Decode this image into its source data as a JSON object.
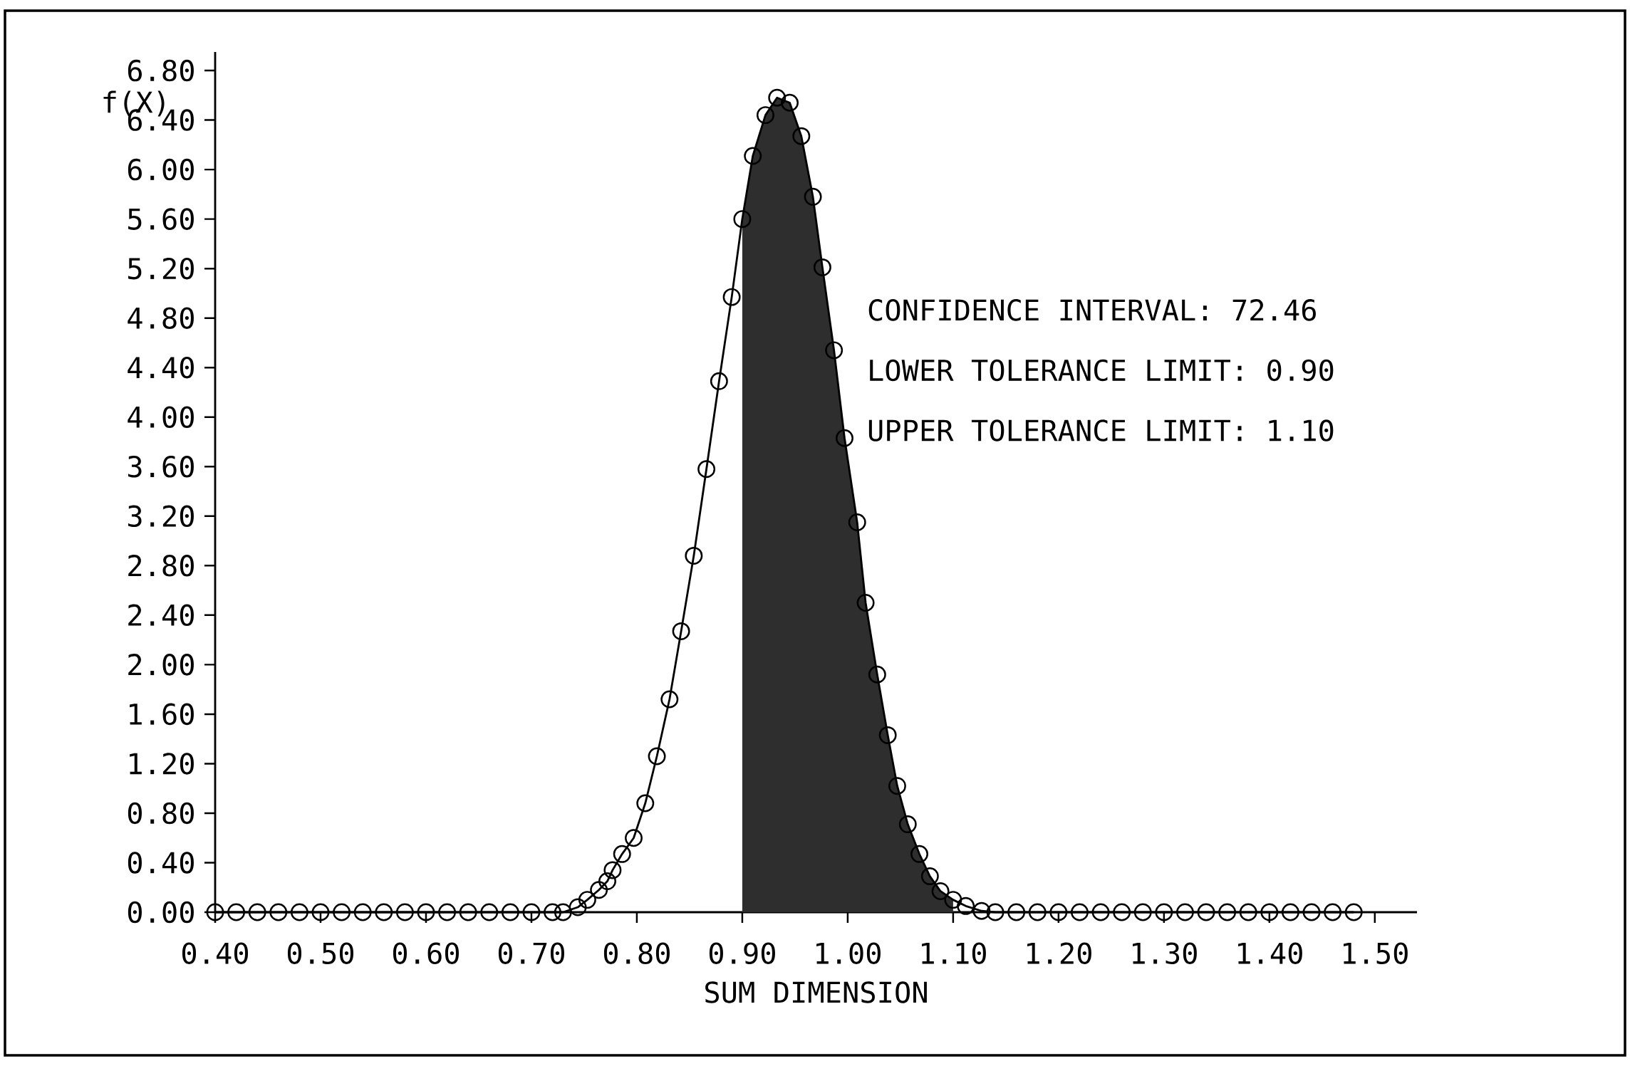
{
  "chart_data": {
    "type": "line",
    "xlabel": "SUM DIMENSION",
    "ylabel": "f(X)",
    "annotations": [
      "CONFIDENCE INTERVAL:  72.46",
      "LOWER TOLERANCE LIMIT:   0.90",
      "UPPER TOLERANCE LIMIT:   1.10"
    ],
    "series": [
      {
        "type": "area",
        "color": "#2e2e2e",
        "marker": "none",
        "x": [
          0.9,
          0.91,
          0.922,
          0.933,
          0.945,
          0.956,
          0.967,
          0.976,
          0.987,
          0.997,
          1.009,
          1.017,
          1.028,
          1.038,
          1.047,
          1.057,
          1.068,
          1.078,
          1.088,
          1.1
        ],
        "values": [
          5.6,
          6.11,
          6.44,
          6.58,
          6.54,
          6.27,
          5.78,
          5.21,
          4.54,
          3.83,
          3.15,
          2.5,
          1.92,
          1.43,
          1.02,
          0.71,
          0.47,
          0.29,
          0.17,
          0.1
        ]
      },
      {
        "color": "#000000",
        "x": [
          0.4,
          0.42,
          0.44,
          0.46,
          0.48,
          0.5,
          0.52,
          0.54,
          0.56,
          0.58,
          0.6,
          0.62,
          0.64,
          0.66,
          0.68,
          0.7,
          0.72,
          0.73,
          0.744,
          0.753,
          0.764,
          0.772,
          0.777,
          0.786,
          0.797,
          0.808,
          0.819,
          0.831,
          0.842,
          0.854,
          0.866,
          0.878,
          0.89,
          0.9,
          0.91,
          0.922,
          0.933,
          0.945,
          0.956,
          0.967,
          0.976,
          0.987,
          0.997,
          1.009,
          1.017,
          1.028,
          1.038,
          1.047,
          1.057,
          1.068,
          1.078,
          1.088,
          1.1,
          1.112,
          1.127,
          1.14,
          1.16,
          1.18,
          1.2,
          1.22,
          1.24,
          1.26,
          1.28,
          1.3,
          1.32,
          1.34,
          1.36,
          1.38,
          1.4,
          1.42,
          1.44,
          1.46,
          1.48
        ],
        "values": [
          0,
          0,
          0,
          0,
          0,
          0,
          0,
          0,
          0,
          0,
          0,
          0,
          0,
          0,
          0,
          0,
          0,
          0,
          0.04,
          0.1,
          0.18,
          0.25,
          0.34,
          0.47,
          0.6,
          0.88,
          1.26,
          1.72,
          2.27,
          2.88,
          3.58,
          4.29,
          4.97,
          5.6,
          6.11,
          6.44,
          6.58,
          6.54,
          6.27,
          5.78,
          5.21,
          4.54,
          3.83,
          3.15,
          2.5,
          1.92,
          1.43,
          1.02,
          0.71,
          0.47,
          0.29,
          0.17,
          0.1,
          0.05,
          0.01,
          0,
          0,
          0,
          0,
          0,
          0,
          0,
          0,
          0,
          0,
          0,
          0,
          0,
          0,
          0,
          0,
          0,
          0
        ]
      }
    ],
    "xlim": [
      0.4,
      1.54
    ],
    "ylim": [
      0,
      6.95
    ],
    "xticks": [
      {
        "value": 0.4,
        "label": "0.40"
      },
      {
        "value": 0.5,
        "label": "0.50"
      },
      {
        "value": 0.6,
        "label": "0.60"
      },
      {
        "value": 0.7,
        "label": "0.70"
      },
      {
        "value": 0.8,
        "label": "0.80"
      },
      {
        "value": 0.9,
        "label": "0.90"
      },
      {
        "value": 1.0,
        "label": "1.00"
      },
      {
        "value": 1.1,
        "label": "1.10"
      },
      {
        "value": 1.2,
        "label": "1.20"
      },
      {
        "value": 1.3,
        "label": "1.30"
      },
      {
        "value": 1.4,
        "label": "1.40"
      },
      {
        "value": 1.5,
        "label": "1.50"
      }
    ],
    "yticks": [
      {
        "value": 0,
        "label": "0.00"
      },
      {
        "value": 0.4,
        "label": "0.40"
      },
      {
        "value": 0.8,
        "label": "0.80"
      },
      {
        "value": 1.2,
        "label": "1.20"
      },
      {
        "value": 1.6,
        "label": "1.60"
      },
      {
        "value": 2.0,
        "label": "2.00"
      },
      {
        "value": 2.4,
        "label": "2.40"
      },
      {
        "value": 2.8,
        "label": "2.80"
      },
      {
        "value": 3.2,
        "label": "3.20"
      },
      {
        "value": 3.6,
        "label": "3.60"
      },
      {
        "value": 4.0,
        "label": "4.00"
      },
      {
        "value": 4.4,
        "label": "4.40"
      },
      {
        "value": 4.8,
        "label": "4.80"
      },
      {
        "value": 5.2,
        "label": "5.20"
      },
      {
        "value": 5.6,
        "label": "5.60"
      },
      {
        "value": 6.0,
        "label": "6.00"
      },
      {
        "value": 6.4,
        "label": "6.40"
      },
      {
        "value": 6.8,
        "label": "6.80"
      }
    ],
    "marker": "circle",
    "line_style": "solid"
  }
}
